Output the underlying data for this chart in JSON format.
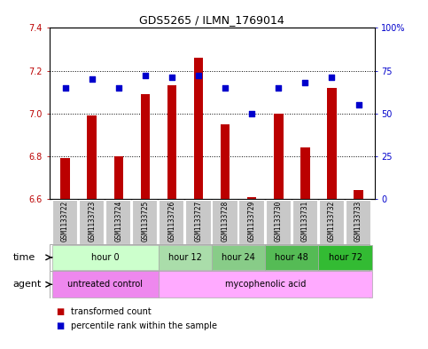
{
  "title": "GDS5265 / ILMN_1769014",
  "samples": [
    "GSM1133722",
    "GSM1133723",
    "GSM1133724",
    "GSM1133725",
    "GSM1133726",
    "GSM1133727",
    "GSM1133728",
    "GSM1133729",
    "GSM1133730",
    "GSM1133731",
    "GSM1133732",
    "GSM1133733"
  ],
  "red_values": [
    6.79,
    6.99,
    6.8,
    7.09,
    7.13,
    7.26,
    6.95,
    6.61,
    7.0,
    6.84,
    7.12,
    6.64
  ],
  "blue_values": [
    65,
    70,
    65,
    72,
    71,
    72,
    65,
    50,
    65,
    68,
    71,
    55
  ],
  "ylim_left": [
    6.6,
    7.4
  ],
  "ylim_right": [
    0,
    100
  ],
  "yticks_left": [
    6.6,
    6.8,
    7.0,
    7.2,
    7.4
  ],
  "yticks_right": [
    0,
    25,
    50,
    75,
    100
  ],
  "ytick_labels_right": [
    "0",
    "25",
    "50",
    "75",
    "100%"
  ],
  "bar_color": "#bb0000",
  "dot_color": "#0000cc",
  "bar_bottom": 6.6,
  "time_groups": [
    {
      "label": "hour 0",
      "start": 0,
      "end": 3,
      "color": "#ccffcc"
    },
    {
      "label": "hour 12",
      "start": 4,
      "end": 5,
      "color": "#aaddaa"
    },
    {
      "label": "hour 24",
      "start": 6,
      "end": 7,
      "color": "#88cc88"
    },
    {
      "label": "hour 48",
      "start": 8,
      "end": 9,
      "color": "#55bb55"
    },
    {
      "label": "hour 72",
      "start": 10,
      "end": 11,
      "color": "#33bb33"
    }
  ],
  "agent_groups": [
    {
      "label": "untreated control",
      "start": 0,
      "end": 3,
      "color": "#ee88ee"
    },
    {
      "label": "mycophenolic acid",
      "start": 4,
      "end": 11,
      "color": "#ffaaff"
    }
  ],
  "legend_items": [
    {
      "label": "transformed count",
      "color": "#bb0000"
    },
    {
      "label": "percentile rank within the sample",
      "color": "#0000cc"
    }
  ],
  "bg_color": "#ffffff",
  "sample_bg_color": "#c8c8c8",
  "label_time": "time",
  "label_agent": "agent",
  "bar_width": 0.35
}
